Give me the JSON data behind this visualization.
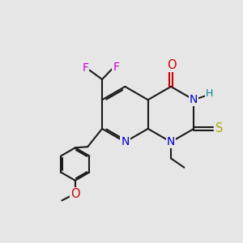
{
  "bg": "#e6e6e6",
  "bond_color": "#1a1a1a",
  "lw": 1.5,
  "atom_colors": {
    "N": "#0000cc",
    "O": "#cc0000",
    "S": "#aaaa00",
    "F": "#cc00cc",
    "H": "#008888",
    "C": "#1a1a1a"
  },
  "fs": 10,
  "fs_small": 8.5
}
